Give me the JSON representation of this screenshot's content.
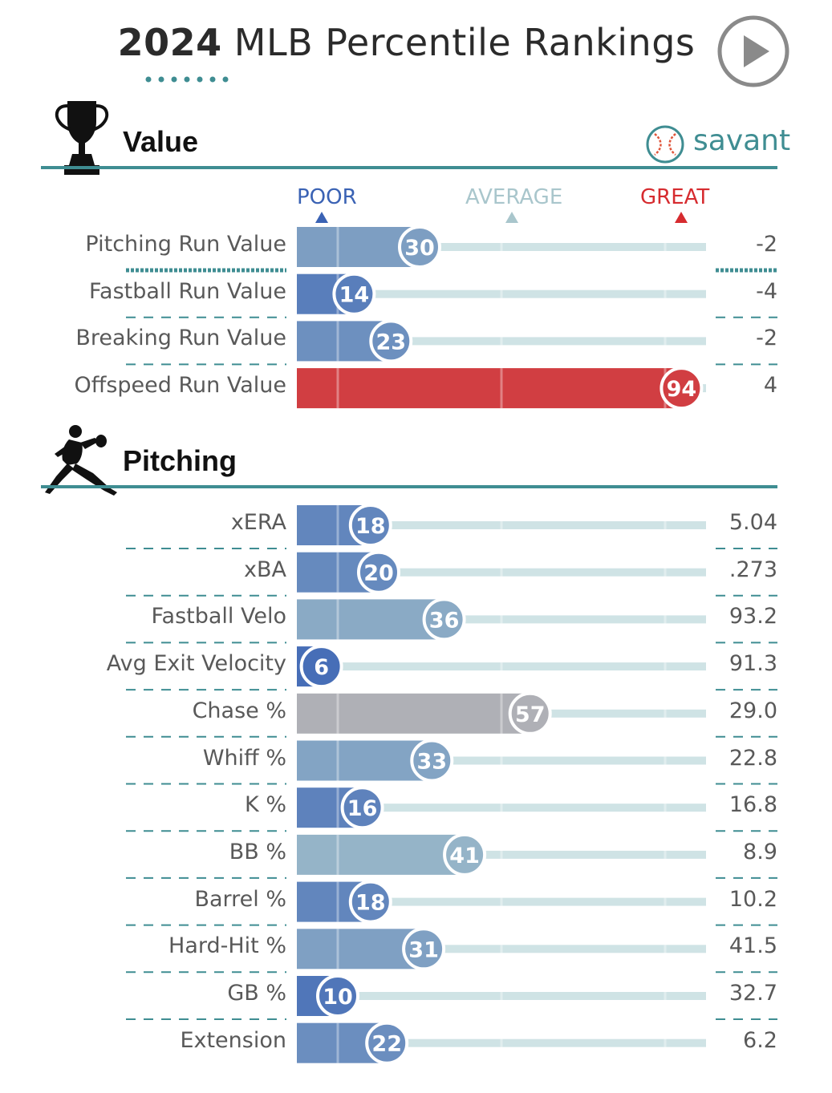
{
  "header": {
    "title_year": "2024",
    "title_rest": "MLB Percentile Rankings"
  },
  "icons": {
    "play": "play-icon",
    "value_section": "trophy-icon",
    "pitching_section": "pitcher-icon",
    "brand": "baseball-icon"
  },
  "brand": {
    "name": "savant"
  },
  "scale": {
    "poor": "POOR",
    "average": "AVERAGE",
    "great": "GREAT"
  },
  "colors": {
    "poor": "#3a62b4",
    "average": "#a9c6cc",
    "great": "#d62b2f",
    "teal": "#3f8d92",
    "track": "#cfe3e5"
  },
  "chart_data": {
    "type": "bar",
    "xlim": [
      0,
      100
    ],
    "sections": [
      {
        "title": "Value",
        "rows": [
          {
            "label": "Pitching Run Value",
            "percentile": 30,
            "value": "-2"
          },
          {
            "label": "Fastball Run Value",
            "percentile": 14,
            "value": "-4"
          },
          {
            "label": "Breaking Run Value",
            "percentile": 23,
            "value": "-2"
          },
          {
            "label": "Offspeed Run Value",
            "percentile": 94,
            "value": "4"
          }
        ]
      },
      {
        "title": "Pitching",
        "rows": [
          {
            "label": "xERA",
            "percentile": 18,
            "value": "5.04"
          },
          {
            "label": "xBA",
            "percentile": 20,
            "value": ".273"
          },
          {
            "label": "Fastball Velo",
            "percentile": 36,
            "value": "93.2"
          },
          {
            "label": "Avg Exit Velocity",
            "percentile": 6,
            "value": "91.3"
          },
          {
            "label": "Chase %",
            "percentile": 57,
            "value": "29.0"
          },
          {
            "label": "Whiff %",
            "percentile": 33,
            "value": "22.8"
          },
          {
            "label": "K %",
            "percentile": 16,
            "value": "16.8"
          },
          {
            "label": "BB %",
            "percentile": 41,
            "value": "8.9"
          },
          {
            "label": "Barrel %",
            "percentile": 18,
            "value": "10.2"
          },
          {
            "label": "Hard-Hit %",
            "percentile": 31,
            "value": "41.5"
          },
          {
            "label": "GB %",
            "percentile": 10,
            "value": "32.7"
          },
          {
            "label": "Extension",
            "percentile": 22,
            "value": "6.2"
          }
        ]
      }
    ]
  }
}
